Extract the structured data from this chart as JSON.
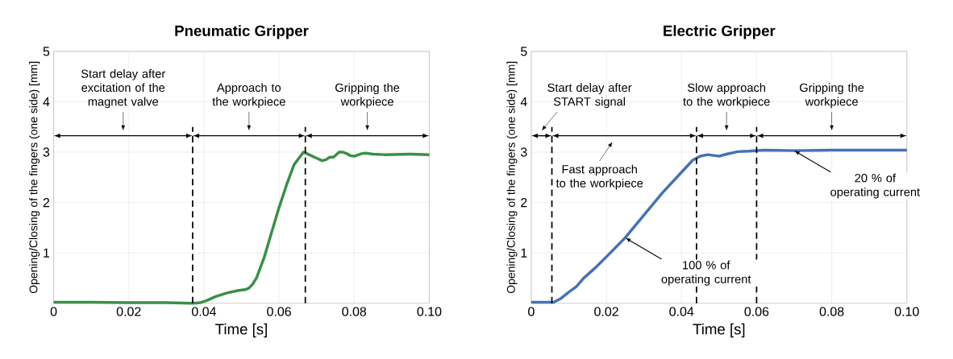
{
  "chart_data": [
    {
      "type": "line",
      "title": "Pneumatic Gripper",
      "xlabel": "Time [s]",
      "ylabel": "Opening/Closing of the fingers (one side) [mm]",
      "xlim": [
        0,
        0.1
      ],
      "ylim": [
        0,
        5
      ],
      "xticks": [
        0,
        0.02,
        0.04,
        0.06,
        0.08,
        {
          "value": 0.1,
          "label": "0.10"
        }
      ],
      "yticks": [
        1,
        2,
        3,
        4,
        5
      ],
      "grid": true,
      "series": [
        {
          "color": "#3a8f47",
          "x": [
            0,
            0.01,
            0.02,
            0.03,
            0.037,
            0.039,
            0.041,
            0.043,
            0.046,
            0.049,
            0.051,
            0.052,
            0.053,
            0.054,
            0.056,
            0.058,
            0.06,
            0.062,
            0.064,
            0.0665,
            0.068,
            0.07,
            0.0715,
            0.0725,
            0.0735,
            0.0745,
            0.076,
            0.077,
            0.078,
            0.079,
            0.08,
            0.082,
            0.083,
            0.085,
            0.088,
            0.095,
            0.1
          ],
          "values": [
            0.02,
            0.02,
            0.01,
            0.01,
            0.0,
            0.01,
            0.06,
            0.13,
            0.2,
            0.25,
            0.27,
            0.3,
            0.38,
            0.5,
            0.9,
            1.4,
            1.9,
            2.35,
            2.75,
            3.0,
            2.95,
            2.88,
            2.83,
            2.85,
            2.9,
            2.9,
            3.0,
            3.0,
            2.97,
            2.93,
            2.92,
            2.97,
            2.98,
            2.96,
            2.95,
            2.96,
            2.95
          ]
        }
      ],
      "ref_lines": [
        {
          "axis": "x",
          "value": 0.037,
          "line_style": "dashed"
        },
        {
          "axis": "x",
          "value": 0.067,
          "line_style": "dashed"
        }
      ],
      "annotations": [
        "Start delay after excitation of the magnet valve",
        "Approach to the workpiece",
        "Gripping the workpiece"
      ]
    },
    {
      "type": "line",
      "title": "Electric Gripper",
      "xlabel": "Time [s]",
      "ylabel": "Opening/Closing of the fingers (one side) [mm]",
      "xlim": [
        0,
        0.1
      ],
      "ylim": [
        0,
        5
      ],
      "xticks": [
        0,
        0.02,
        0.04,
        0.06,
        0.08,
        {
          "value": 0.1,
          "label": "0.10"
        }
      ],
      "yticks": [
        1,
        2,
        3,
        4,
        5
      ],
      "grid": true,
      "series": [
        {
          "color": "#4472b4",
          "x": [
            0,
            0.0055,
            0.006,
            0.008,
            0.01,
            0.012,
            0.014,
            0.017,
            0.02,
            0.025,
            0.03,
            0.035,
            0.04,
            0.043,
            0.045,
            0.047,
            0.049,
            0.05,
            0.052,
            0.055,
            0.058,
            0.062,
            0.07,
            0.08,
            0.09,
            0.1
          ],
          "values": [
            0.02,
            0.02,
            0.02,
            0.1,
            0.22,
            0.33,
            0.5,
            0.7,
            0.92,
            1.3,
            1.75,
            2.2,
            2.6,
            2.84,
            2.92,
            2.95,
            2.93,
            2.92,
            2.96,
            3.01,
            3.02,
            3.04,
            3.03,
            3.04,
            3.04,
            3.04
          ]
        }
      ],
      "ref_lines": [
        {
          "axis": "x",
          "value": 0.0055,
          "line_style": "dashed"
        },
        {
          "axis": "x",
          "value": 0.044,
          "line_style": "dashed"
        },
        {
          "axis": "x",
          "value": 0.06,
          "line_style": "dashed"
        }
      ],
      "annotations": [
        "Start delay after START signal",
        "Fast approach to the workpiece",
        "Slow approach to the workpiece",
        "Gripping the workpiece",
        {
          "text": "100 % of operating current",
          "x": 0.025,
          "y": 1.3
        },
        {
          "text": "20 % of operating current",
          "x": 0.07,
          "y": 3.03
        }
      ]
    }
  ]
}
